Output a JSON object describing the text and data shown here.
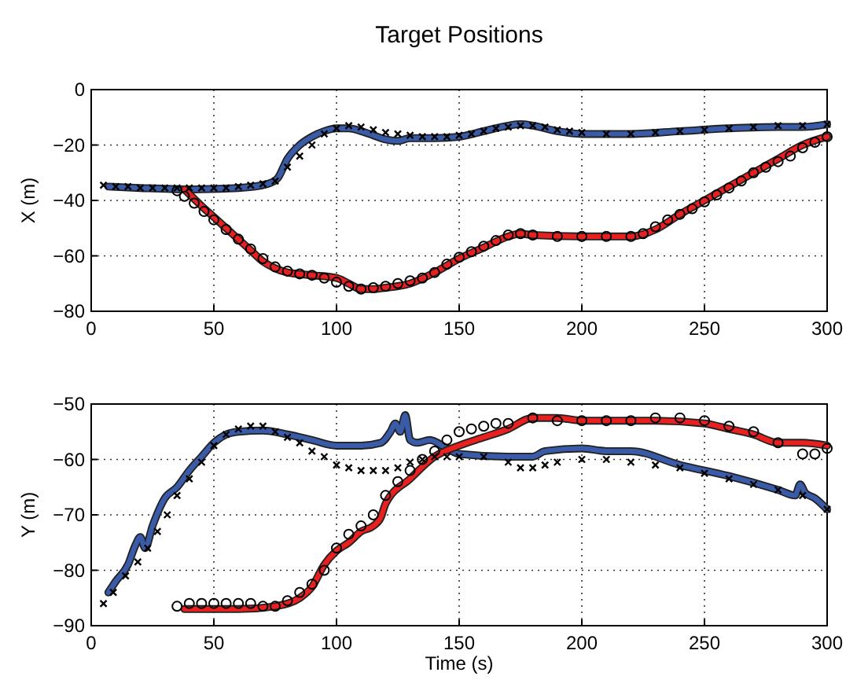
{
  "chart_data": [
    {
      "type": "line",
      "title": "Target Positions",
      "ylabel": "X (m)",
      "xlim": [
        0,
        300
      ],
      "xticks": [
        0,
        50,
        100,
        150,
        200,
        250,
        300
      ],
      "ylim": [
        -80,
        0
      ],
      "yticks": [
        -80,
        -60,
        -40,
        -20,
        0
      ],
      "grid": true,
      "series": [
        {
          "type": "line",
          "color": "#3a5ba8",
          "marker": "none",
          "x": [
            7,
            20,
            40,
            60,
            72,
            76,
            80,
            85,
            90,
            95,
            100,
            105,
            110,
            115,
            120,
            125,
            130,
            140,
            150,
            160,
            170,
            175,
            180,
            190,
            200,
            220,
            240,
            260,
            280,
            290,
            300
          ],
          "values": [
            -35,
            -35.5,
            -36,
            -35.5,
            -34,
            -32,
            -25,
            -20,
            -17,
            -15,
            -14,
            -14,
            -15,
            -16.5,
            -18,
            -18.5,
            -17.5,
            -17.5,
            -17,
            -15,
            -13,
            -12.5,
            -13,
            -15,
            -16,
            -16,
            -15,
            -14,
            -13.5,
            -13.5,
            -12.5
          ]
        },
        {
          "type": "line",
          "color": "#e8201f",
          "marker": "none",
          "x": [
            38,
            45,
            50,
            55,
            60,
            65,
            70,
            75,
            80,
            90,
            100,
            105,
            110,
            115,
            120,
            130,
            140,
            150,
            160,
            170,
            175,
            180,
            200,
            220,
            230,
            240,
            250,
            260,
            270,
            280,
            290,
            300
          ],
          "values": [
            -36,
            -42,
            -46,
            -50,
            -54,
            -58,
            -62,
            -64.5,
            -66,
            -67,
            -68,
            -70,
            -72,
            -72,
            -71.5,
            -70,
            -66,
            -61,
            -57,
            -53,
            -52,
            -52.5,
            -53,
            -53,
            -50.5,
            -45,
            -40,
            -35,
            -30,
            -25,
            -20,
            -17
          ]
        },
        {
          "type": "scatter",
          "color": "#000000",
          "marker": "cross",
          "x": [
            5,
            10,
            15,
            20,
            25,
            30,
            35,
            40,
            45,
            50,
            55,
            60,
            65,
            70,
            75,
            80,
            85,
            90,
            95,
            100,
            105,
            110,
            115,
            120,
            125,
            130,
            135,
            140,
            145,
            150,
            155,
            160,
            165,
            170,
            175,
            180,
            185,
            190,
            195,
            200,
            210,
            220,
            230,
            240,
            250,
            260,
            270,
            280,
            290,
            300
          ],
          "values": [
            -34.5,
            -35,
            -35,
            -35.5,
            -35.5,
            -35.5,
            -35.5,
            -35.5,
            -35.5,
            -35.5,
            -35.5,
            -35,
            -34.5,
            -34,
            -33,
            -28,
            -24,
            -20,
            -16,
            -14,
            -13,
            -13.5,
            -14.5,
            -15.5,
            -16,
            -16.5,
            -17,
            -17,
            -17,
            -16.5,
            -16,
            -15,
            -14,
            -13.5,
            -13,
            -13,
            -13.5,
            -14.5,
            -15,
            -15.5,
            -16,
            -16,
            -15.5,
            -15,
            -14.5,
            -14,
            -13.5,
            -13,
            -13,
            -12.5
          ]
        },
        {
          "type": "scatter",
          "color": "#000000",
          "marker": "circle",
          "x": [
            35,
            38,
            42,
            46,
            50,
            55,
            60,
            65,
            70,
            75,
            80,
            85,
            90,
            95,
            100,
            105,
            110,
            115,
            120,
            125,
            130,
            135,
            140,
            145,
            150,
            155,
            160,
            165,
            170,
            175,
            180,
            190,
            200,
            210,
            220,
            225,
            230,
            235,
            240,
            245,
            250,
            255,
            260,
            265,
            270,
            275,
            280,
            285,
            290,
            295,
            300
          ],
          "values": [
            -36.5,
            -38.5,
            -41,
            -44,
            -47,
            -50.5,
            -54,
            -57.5,
            -61,
            -64,
            -65.5,
            -66.5,
            -67,
            -68,
            -69.5,
            -71,
            -72,
            -71.5,
            -71,
            -70,
            -69,
            -68,
            -66,
            -63,
            -60.5,
            -58.5,
            -56.5,
            -54.5,
            -52.5,
            -52,
            -52.5,
            -53,
            -53,
            -53,
            -53,
            -52,
            -49.5,
            -47,
            -45,
            -43,
            -40.5,
            -38,
            -35.5,
            -33,
            -30,
            -28,
            -26,
            -24,
            -21,
            -19,
            -17
          ]
        }
      ]
    },
    {
      "type": "line",
      "xlabel": "Time (s)",
      "ylabel": "Y (m)",
      "xlim": [
        0,
        300
      ],
      "xticks": [
        0,
        50,
        100,
        150,
        200,
        250,
        300
      ],
      "ylim": [
        -90,
        -50
      ],
      "yticks": [
        -90,
        -80,
        -70,
        -60,
        -50
      ],
      "grid": true,
      "series": [
        {
          "type": "line",
          "color": "#3a5ba8",
          "marker": "none",
          "x": [
            7,
            10,
            15,
            18,
            20,
            22,
            25,
            30,
            35,
            40,
            45,
            50,
            55,
            60,
            70,
            80,
            90,
            100,
            110,
            118,
            122,
            124,
            126,
            128,
            130,
            133,
            138,
            145,
            150,
            170,
            180,
            185,
            200,
            210,
            220,
            240,
            260,
            280,
            287,
            289,
            291,
            295,
            300
          ],
          "values": [
            -84,
            -82,
            -79,
            -75.5,
            -74,
            -76,
            -72,
            -67,
            -65,
            -62,
            -59.5,
            -57,
            -55.5,
            -55,
            -54.8,
            -55.5,
            -56.5,
            -57.5,
            -57.5,
            -57,
            -55,
            -53.5,
            -55,
            -52,
            -56.5,
            -57,
            -56.5,
            -58,
            -59,
            -59.5,
            -59.5,
            -58.5,
            -58,
            -58.5,
            -58.5,
            -61,
            -63,
            -65.5,
            -66.5,
            -64.5,
            -66,
            -67,
            -69
          ]
        },
        {
          "type": "line",
          "color": "#e8201f",
          "marker": "none",
          "x": [
            38,
            60,
            75,
            85,
            90,
            95,
            100,
            105,
            110,
            115,
            118,
            120,
            130,
            140,
            150,
            160,
            170,
            180,
            190,
            200,
            230,
            250,
            260,
            270,
            280,
            290,
            300
          ],
          "values": [
            -87,
            -87,
            -86.5,
            -85,
            -83,
            -79,
            -76.5,
            -75,
            -73,
            -72,
            -70.5,
            -68,
            -63.5,
            -59.5,
            -57.5,
            -56,
            -54.5,
            -52.5,
            -52.5,
            -53,
            -53,
            -53.5,
            -54.5,
            -55.5,
            -57,
            -57,
            -57.5
          ]
        },
        {
          "type": "scatter",
          "color": "#000000",
          "marker": "cross",
          "x": [
            5,
            9,
            14,
            19,
            23,
            27,
            31,
            35,
            40,
            45,
            50,
            55,
            60,
            65,
            70,
            75,
            80,
            85,
            90,
            95,
            100,
            105,
            110,
            115,
            120,
            125,
            130,
            135,
            140,
            145,
            150,
            160,
            170,
            175,
            180,
            185,
            190,
            200,
            210,
            220,
            230,
            240,
            250,
            260,
            270,
            280,
            290,
            300
          ],
          "values": [
            -86,
            -84,
            -81,
            -78.5,
            -76,
            -73,
            -70,
            -66.5,
            -63.5,
            -60.5,
            -57.5,
            -55.5,
            -54.5,
            -54,
            -54,
            -55,
            -56,
            -57,
            -58.5,
            -59.5,
            -61,
            -61.5,
            -62,
            -62,
            -62,
            -61.5,
            -60.5,
            -60,
            -59.5,
            -59.5,
            -59.5,
            -59.5,
            -60.5,
            -61.5,
            -61.5,
            -61,
            -60.5,
            -60,
            -60,
            -60.5,
            -61,
            -61.5,
            -62.5,
            -63.5,
            -64.5,
            -65.5,
            -66.5,
            -69
          ]
        },
        {
          "type": "scatter",
          "color": "#000000",
          "marker": "circle",
          "x": [
            35,
            40,
            45,
            50,
            55,
            60,
            65,
            70,
            75,
            80,
            85,
            90,
            95,
            100,
            105,
            110,
            115,
            120,
            125,
            130,
            135,
            140,
            145,
            150,
            155,
            160,
            165,
            170,
            180,
            190,
            200,
            210,
            220,
            230,
            240,
            250,
            260,
            270,
            280,
            290,
            295,
            300
          ],
          "values": [
            -86.5,
            -86,
            -86,
            -86,
            -86,
            -86,
            -86,
            -86.5,
            -86.5,
            -85.5,
            -84,
            -82.5,
            -80,
            -76,
            -73.5,
            -72,
            -70,
            -66.5,
            -64,
            -62,
            -60,
            -58.5,
            -56.5,
            -55,
            -54.5,
            -54,
            -53.5,
            -53.5,
            -52.5,
            -53,
            -53,
            -53,
            -53,
            -52.5,
            -52.5,
            -53,
            -54,
            -55,
            -57,
            -59,
            -59,
            -58
          ]
        }
      ]
    }
  ]
}
